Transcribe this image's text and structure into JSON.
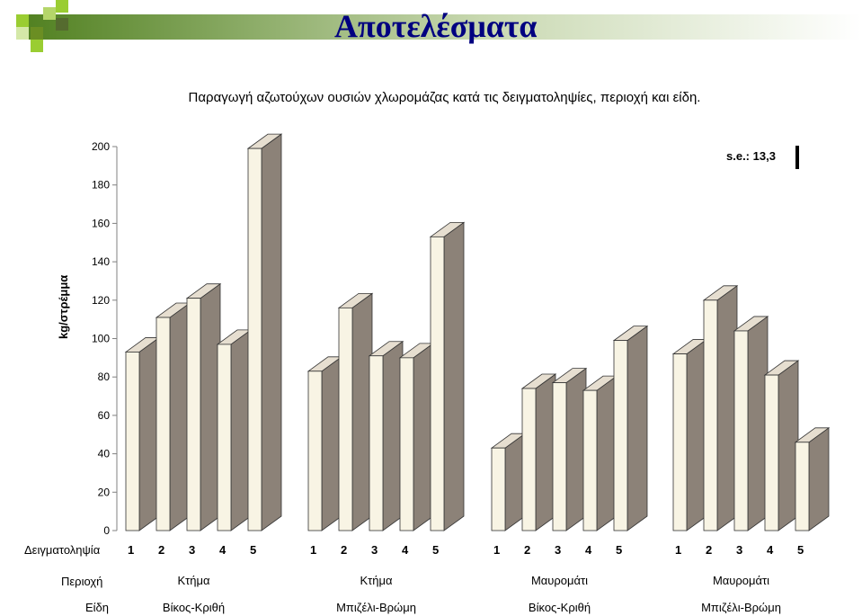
{
  "slide": {
    "title": "Αποτελέσματα"
  },
  "chart_data": {
    "type": "bar",
    "title": "Παραγωγή αζωτούχων ουσιών χλωρομάζας κατά τις δειγματοληψίες, περιοχή και είδη.",
    "ylabel": "kg/στρέμμα",
    "ylim": [
      0,
      200
    ],
    "yticks": [
      "0",
      "20",
      "40",
      "60",
      "80",
      "100",
      "120",
      "140",
      "160",
      "180",
      "200"
    ],
    "standard_error": "s.e.: 13,3",
    "row_labels": {
      "sampling": "Δειγματοληψία",
      "region": "Περιοχή",
      "species": "Είδη"
    },
    "groups": [
      {
        "region": "Κτήμα",
        "species": "Βίκος-Κριθή",
        "samplings": [
          "1",
          "2",
          "3",
          "4",
          "5"
        ],
        "values": [
          93,
          111,
          121,
          97,
          199
        ]
      },
      {
        "region": "Κτήμα",
        "species": "Μπιζέλι-Βρώμη",
        "samplings": [
          "1",
          "2",
          "3",
          "4",
          "5"
        ],
        "values": [
          83,
          116,
          91,
          90,
          153
        ]
      },
      {
        "region": "Μαυρομάτι",
        "species": "Βίκος-Κριθή",
        "samplings": [
          "1",
          "2",
          "3",
          "4",
          "5"
        ],
        "values": [
          43,
          74,
          77,
          73,
          99
        ]
      },
      {
        "region": "Μαυρομάτι",
        "species": "Μπιζέλι-Βρώμη",
        "samplings": [
          "1",
          "2",
          "3",
          "4",
          "5"
        ],
        "values": [
          92,
          120,
          104,
          81,
          46
        ]
      }
    ],
    "colors": {
      "front": "#f8f4e4",
      "side": "#8c8278",
      "top": "#e6ded0",
      "edge": "#333333"
    }
  }
}
